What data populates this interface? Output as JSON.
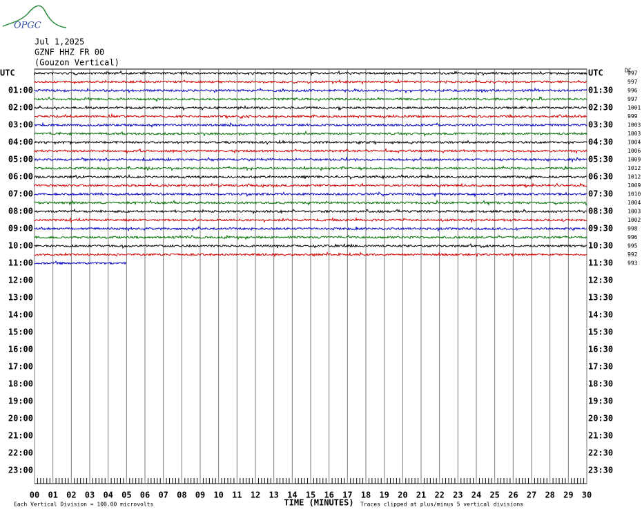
{
  "header": {
    "logo": "OPGC",
    "date": "Jul 1,2025",
    "station": "GZNF HHZ FR 00",
    "name": "(Gouzon Vertical)"
  },
  "left_labels": [
    "UTC",
    "01:00",
    "02:00",
    "03:00",
    "04:00",
    "05:00",
    "06:00",
    "07:00",
    "08:00",
    "09:00",
    "10:00",
    "11:00",
    "12:00",
    "13:00",
    "14:00",
    "15:00",
    "16:00",
    "17:00",
    "18:00",
    "19:00",
    "20:00",
    "21:00",
    "22:00",
    "23:00"
  ],
  "right_labels": [
    "UTC",
    "01:30",
    "02:30",
    "03:30",
    "04:30",
    "05:30",
    "06:30",
    "07:30",
    "08:30",
    "09:30",
    "10:30",
    "11:30",
    "12:30",
    "13:30",
    "14:30",
    "15:30",
    "16:30",
    "17:30",
    "18:30",
    "19:30",
    "20:30",
    "21:30",
    "22:30",
    "23:30"
  ],
  "dc_label": "DC",
  "dc_values": [
    997,
    997,
    996,
    997,
    1001,
    999,
    1003,
    1003,
    1004,
    1006,
    1009,
    1012,
    1012,
    1009,
    1010,
    1004,
    1003,
    1002,
    998,
    996,
    995,
    992,
    993
  ],
  "trace_colors": [
    "#000000",
    "#d00000",
    "#0000c0",
    "#007000"
  ],
  "last_trace_minutes": 5,
  "xticks": [
    "00",
    "01",
    "02",
    "03",
    "04",
    "05",
    "06",
    "07",
    "08",
    "09",
    "10",
    "11",
    "12",
    "13",
    "14",
    "15",
    "16",
    "17",
    "18",
    "19",
    "20",
    "21",
    "22",
    "23",
    "24",
    "25",
    "26",
    "27",
    "28",
    "29",
    "30"
  ],
  "x_axis_label": "TIME (MINUTES)",
  "footer_left": "Each Vertical Division =  100.00 microvolts",
  "footer_right": "Traces clipped at plus/minus 5 vertical divisions"
}
